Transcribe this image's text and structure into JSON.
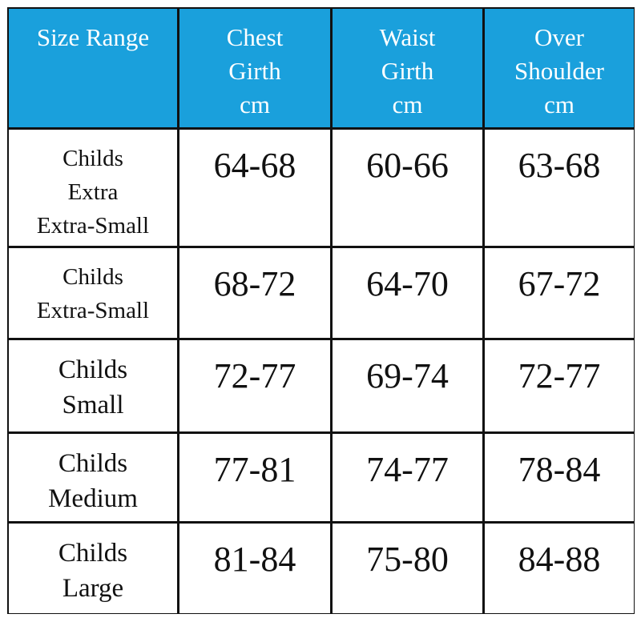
{
  "table": {
    "header": [
      [
        "Size Range"
      ],
      [
        "Chest",
        "Girth",
        "cm"
      ],
      [
        "Waist",
        "Girth",
        "cm"
      ],
      [
        "Over",
        "Shoulder",
        "cm"
      ]
    ],
    "rows": [
      [
        [
          "Childs",
          "Extra",
          "Extra-Small"
        ],
        "64-68",
        "60-66",
        "63-68"
      ],
      [
        [
          "Childs",
          "Extra-Small"
        ],
        "68-72",
        "64-70",
        "67-72"
      ],
      [
        [
          "Childs",
          "Small"
        ],
        "72-77",
        "69-74",
        "72-77"
      ],
      [
        [
          "Childs",
          "Medium"
        ],
        "77-81",
        "74-77",
        "78-84"
      ],
      [
        [
          "Childs",
          "Large"
        ],
        "81-84",
        "75-80",
        "84-88"
      ]
    ]
  }
}
